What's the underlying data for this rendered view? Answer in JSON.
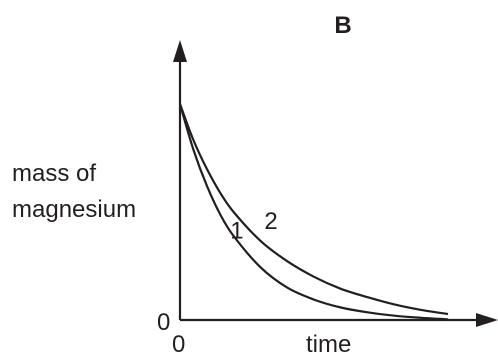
{
  "chart_data": {
    "type": "line",
    "title": "B",
    "xlabel": "time",
    "ylabel_lines": [
      "mass of",
      "magnesium"
    ],
    "x_tick_labels": [
      "0"
    ],
    "y_tick_labels": [
      "0"
    ],
    "xlim": [
      0,
      10
    ],
    "ylim": [
      0,
      10
    ],
    "grid": false,
    "legend": "none",
    "series": [
      {
        "name": "1",
        "x": [
          0,
          0.5,
          1,
          1.5,
          2,
          3,
          4,
          5,
          6,
          7,
          8,
          9,
          10
        ],
        "y": [
          9.0,
          7.1,
          5.6,
          4.4,
          3.5,
          2.2,
          1.35,
          0.85,
          0.52,
          0.32,
          0.18,
          0.09,
          0.03
        ]
      },
      {
        "name": "2",
        "x": [
          0,
          0.5,
          1,
          1.5,
          2,
          3,
          4,
          5,
          6,
          7,
          8,
          9,
          10
        ],
        "y": [
          9.0,
          7.5,
          6.3,
          5.3,
          4.5,
          3.3,
          2.45,
          1.8,
          1.3,
          0.95,
          0.65,
          0.42,
          0.25
        ]
      }
    ],
    "line_color": "#231f20"
  }
}
